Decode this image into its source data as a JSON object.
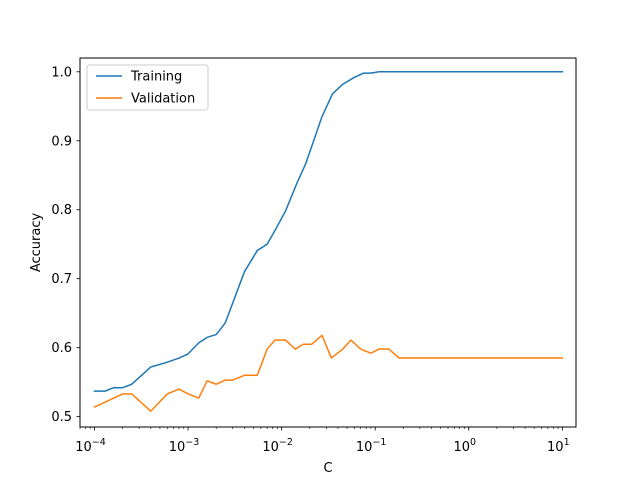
{
  "chart_data": {
    "type": "line",
    "xscale": "log",
    "xlabel": "C",
    "ylabel": "Accuracy",
    "xlim": [
      7e-05,
      14
    ],
    "ylim": [
      0.485,
      1.02
    ],
    "xticks": [
      {
        "value": 0.0001,
        "base": "10",
        "exp": "−4"
      },
      {
        "value": 0.001,
        "base": "10",
        "exp": "−3"
      },
      {
        "value": 0.01,
        "base": "10",
        "exp": "−2"
      },
      {
        "value": 0.1,
        "base": "10",
        "exp": "−1"
      },
      {
        "value": 1,
        "base": "10",
        "exp": "0"
      },
      {
        "value": 10,
        "base": "10",
        "exp": "1"
      }
    ],
    "yticks": [
      {
        "value": 0.5,
        "label": "0.5"
      },
      {
        "value": 0.6,
        "label": "0.6"
      },
      {
        "value": 0.7,
        "label": "0.7"
      },
      {
        "value": 0.8,
        "label": "0.8"
      },
      {
        "value": 0.9,
        "label": "0.9"
      },
      {
        "value": 1.0,
        "label": "1.0"
      }
    ],
    "grid": false,
    "legend": "top-left",
    "series": [
      {
        "name": "Training",
        "color": "#1f77b4",
        "x": [
          0.0001,
          0.00013,
          0.00016,
          0.0002,
          0.00025,
          0.0004,
          0.0006,
          0.0008,
          0.001,
          0.0013,
          0.0016,
          0.002,
          0.0025,
          0.004,
          0.0055,
          0.007,
          0.0085,
          0.011,
          0.0145,
          0.018,
          0.022,
          0.027,
          0.035,
          0.045,
          0.06,
          0.075,
          0.09,
          0.11,
          0.14,
          0.2,
          0.5,
          1,
          3,
          10
        ],
        "values": [
          0.537,
          0.537,
          0.542,
          0.542,
          0.547,
          0.572,
          0.579,
          0.585,
          0.591,
          0.607,
          0.615,
          0.619,
          0.636,
          0.71,
          0.741,
          0.75,
          0.77,
          0.798,
          0.838,
          0.866,
          0.9,
          0.935,
          0.968,
          0.982,
          0.992,
          0.998,
          0.998,
          1.0,
          1.0,
          1.0,
          1.0,
          1.0,
          1.0,
          1.0
        ]
      },
      {
        "name": "Validation",
        "color": "#ff7f0e",
        "x": [
          0.0001,
          0.0002,
          0.00025,
          0.0004,
          0.0006,
          0.0008,
          0.001,
          0.0013,
          0.0016,
          0.002,
          0.0025,
          0.003,
          0.004,
          0.0055,
          0.007,
          0.0085,
          0.011,
          0.014,
          0.017,
          0.021,
          0.027,
          0.034,
          0.045,
          0.055,
          0.07,
          0.09,
          0.11,
          0.14,
          0.18,
          0.3,
          1,
          3,
          10
        ],
        "values": [
          0.514,
          0.533,
          0.533,
          0.508,
          0.533,
          0.54,
          0.533,
          0.527,
          0.552,
          0.547,
          0.553,
          0.553,
          0.56,
          0.56,
          0.598,
          0.611,
          0.611,
          0.598,
          0.605,
          0.605,
          0.618,
          0.585,
          0.598,
          0.611,
          0.598,
          0.592,
          0.598,
          0.598,
          0.585,
          0.585,
          0.585,
          0.585,
          0.585
        ]
      }
    ]
  }
}
